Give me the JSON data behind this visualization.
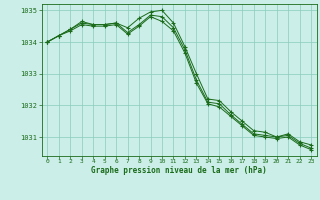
{
  "title": "Graphe pression niveau de la mer (hPa)",
  "bg_color": "#cceee8",
  "grid_color": "#88ccbb",
  "line_color": "#1a6b1a",
  "xlim": [
    -0.5,
    23.5
  ],
  "ylim": [
    1030.4,
    1035.2
  ],
  "yticks": [
    1031,
    1032,
    1033,
    1034,
    1035
  ],
  "xticks": [
    0,
    1,
    2,
    3,
    4,
    5,
    6,
    7,
    8,
    9,
    10,
    11,
    12,
    13,
    14,
    15,
    16,
    17,
    18,
    19,
    20,
    21,
    22,
    23
  ],
  "series": [
    [
      1034.0,
      1034.2,
      1034.4,
      1034.65,
      1034.55,
      1034.55,
      1034.6,
      1034.45,
      1034.75,
      1034.95,
      1035.0,
      1034.6,
      1033.85,
      1033.0,
      1032.2,
      1032.15,
      1031.8,
      1031.5,
      1031.2,
      1031.15,
      1031.0,
      1031.1,
      1030.85,
      1030.75
    ],
    [
      1034.0,
      1034.2,
      1034.4,
      1034.6,
      1034.55,
      1034.55,
      1034.6,
      1034.3,
      1034.55,
      1034.85,
      1034.8,
      1034.45,
      1033.75,
      1032.8,
      1032.1,
      1032.05,
      1031.7,
      1031.4,
      1031.1,
      1031.05,
      1031.0,
      1031.05,
      1030.8,
      1030.65
    ],
    [
      1034.0,
      1034.2,
      1034.35,
      1034.55,
      1034.5,
      1034.5,
      1034.55,
      1034.25,
      1034.5,
      1034.8,
      1034.65,
      1034.35,
      1033.65,
      1032.7,
      1032.05,
      1031.95,
      1031.65,
      1031.35,
      1031.05,
      1031.0,
      1030.95,
      1031.0,
      1030.75,
      1030.6
    ]
  ]
}
